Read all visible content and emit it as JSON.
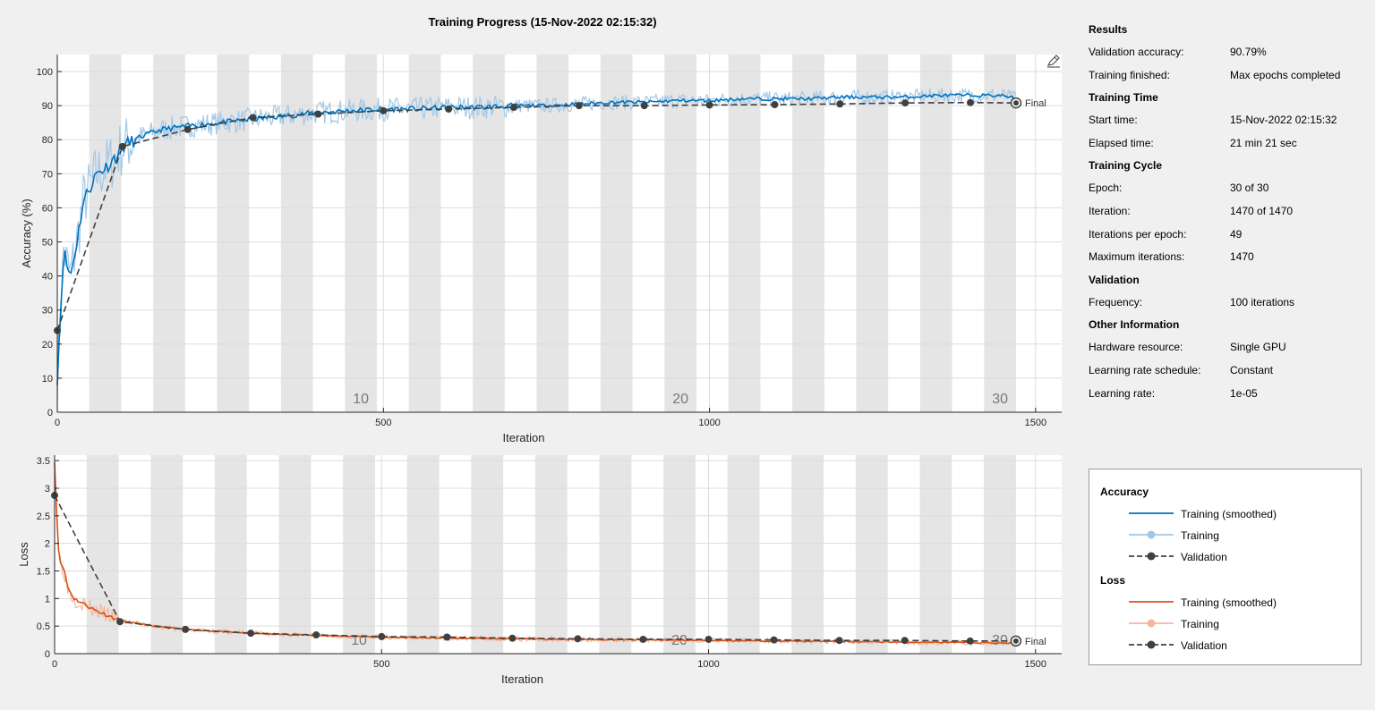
{
  "title": "Training Progress (15-Nov-2022 02:15:32)",
  "colors": {
    "acc_smoothed": "#0072bd",
    "acc_raw": "#a2c8e6",
    "loss_smoothed": "#d95319",
    "loss_raw": "#f1b89e",
    "validation": "#404040",
    "epoch_band": "#e5e5e5",
    "grid": "#dcdcdc"
  },
  "results": {
    "sections": [
      {
        "heading": "Results",
        "rows": [
          {
            "label": "Validation accuracy:",
            "value": "90.79%"
          },
          {
            "label": "Training finished:",
            "value": "Max epochs completed"
          }
        ]
      },
      {
        "heading": "Training Time",
        "rows": [
          {
            "label": "Start time:",
            "value": "15-Nov-2022 02:15:32"
          },
          {
            "label": "Elapsed time:",
            "value": "21 min 21 sec"
          }
        ]
      },
      {
        "heading": "Training Cycle",
        "rows": [
          {
            "label": "Epoch:",
            "value": "30 of 30"
          },
          {
            "label": "Iteration:",
            "value": "1470 of 1470"
          },
          {
            "label": "Iterations per epoch:",
            "value": "49"
          },
          {
            "label": "Maximum iterations:",
            "value": "1470"
          }
        ]
      },
      {
        "heading": "Validation",
        "rows": [
          {
            "label": "Frequency:",
            "value": "100 iterations"
          }
        ]
      },
      {
        "heading": "Other Information",
        "rows": [
          {
            "label": "Hardware resource:",
            "value": "Single GPU"
          },
          {
            "label": "Learning rate schedule:",
            "value": "Constant"
          },
          {
            "label": "Learning rate:",
            "value": "1e-05"
          }
        ]
      }
    ]
  },
  "legend": {
    "groups": [
      {
        "heading": "Accuracy",
        "items": [
          "Training (smoothed)",
          "Training",
          "Validation"
        ]
      },
      {
        "heading": "Loss",
        "items": [
          "Training (smoothed)",
          "Training",
          "Validation"
        ]
      }
    ]
  },
  "chart_data": [
    {
      "type": "line",
      "name": "accuracy",
      "xlabel": "Iteration",
      "ylabel": "Accuracy (%)",
      "xlim": [
        0,
        1540
      ],
      "ylim": [
        0,
        105
      ],
      "xticks": [
        0,
        500,
        1000,
        1500
      ],
      "yticks": [
        0,
        10,
        20,
        30,
        40,
        50,
        60,
        70,
        80,
        90,
        100
      ],
      "grid": true,
      "epochs": 30,
      "iterations_per_epoch": 49,
      "epoch_labels": [
        "10",
        "20",
        "30"
      ],
      "final_label": "Final",
      "smoothed_points": [
        [
          0,
          10
        ],
        [
          5,
          30
        ],
        [
          10,
          48
        ],
        [
          15,
          43
        ],
        [
          20,
          40
        ],
        [
          30,
          50
        ],
        [
          40,
          62
        ],
        [
          50,
          66
        ],
        [
          60,
          70
        ],
        [
          75,
          72
        ],
        [
          90,
          75
        ],
        [
          100,
          78
        ],
        [
          130,
          81
        ],
        [
          160,
          83
        ],
        [
          200,
          84
        ],
        [
          250,
          85
        ],
        [
          300,
          86
        ],
        [
          350,
          87
        ],
        [
          400,
          88
        ],
        [
          450,
          88.5
        ],
        [
          500,
          89
        ],
        [
          550,
          89
        ],
        [
          600,
          89.5
        ],
        [
          650,
          89.5
        ],
        [
          700,
          90
        ],
        [
          750,
          90
        ],
        [
          800,
          90.5
        ],
        [
          850,
          91
        ],
        [
          900,
          91
        ],
        [
          950,
          91.5
        ],
        [
          1000,
          91.5
        ],
        [
          1050,
          92
        ],
        [
          1100,
          92
        ],
        [
          1150,
          92
        ],
        [
          1200,
          92.5
        ],
        [
          1250,
          92.5
        ],
        [
          1300,
          92.5
        ],
        [
          1350,
          93
        ],
        [
          1400,
          93
        ],
        [
          1450,
          93
        ],
        [
          1470,
          92
        ]
      ],
      "validation": {
        "x": [
          0,
          100,
          200,
          300,
          400,
          500,
          600,
          700,
          800,
          900,
          1000,
          1100,
          1200,
          1300,
          1400,
          1470
        ],
        "y": [
          24,
          78,
          83,
          86.5,
          87.5,
          88.5,
          89,
          89.5,
          90,
          90,
          90.2,
          90.3,
          90.5,
          90.8,
          90.9,
          90.79
        ]
      }
    },
    {
      "type": "line",
      "name": "loss",
      "xlabel": "Iteration",
      "ylabel": "Loss",
      "xlim": [
        0,
        1540
      ],
      "ylim": [
        0,
        3.6
      ],
      "xticks": [
        0,
        500,
        1000,
        1500
      ],
      "yticks": [
        0,
        0.5,
        1,
        1.5,
        2,
        2.5,
        3,
        3.5
      ],
      "grid": true,
      "epochs": 30,
      "iterations_per_epoch": 49,
      "epoch_labels": [
        "10",
        "20",
        "30"
      ],
      "final_label": "Final",
      "smoothed_points": [
        [
          0,
          3.5
        ],
        [
          3,
          2.6
        ],
        [
          6,
          1.9
        ],
        [
          10,
          1.6
        ],
        [
          15,
          1.5
        ],
        [
          20,
          1.2
        ],
        [
          30,
          1.0
        ],
        [
          45,
          0.9
        ],
        [
          60,
          0.8
        ],
        [
          80,
          0.7
        ],
        [
          100,
          0.6
        ],
        [
          150,
          0.5
        ],
        [
          200,
          0.44
        ],
        [
          300,
          0.37
        ],
        [
          400,
          0.33
        ],
        [
          500,
          0.3
        ],
        [
          600,
          0.28
        ],
        [
          700,
          0.27
        ],
        [
          800,
          0.26
        ],
        [
          900,
          0.25
        ],
        [
          1000,
          0.24
        ],
        [
          1100,
          0.23
        ],
        [
          1200,
          0.22
        ],
        [
          1300,
          0.21
        ],
        [
          1400,
          0.2
        ],
        [
          1470,
          0.19
        ]
      ],
      "validation": {
        "x": [
          0,
          100,
          200,
          300,
          400,
          500,
          600,
          700,
          800,
          900,
          1000,
          1100,
          1200,
          1300,
          1400,
          1470
        ],
        "y": [
          2.87,
          0.58,
          0.44,
          0.37,
          0.34,
          0.31,
          0.3,
          0.28,
          0.27,
          0.26,
          0.26,
          0.25,
          0.24,
          0.24,
          0.23,
          0.23
        ]
      }
    }
  ]
}
